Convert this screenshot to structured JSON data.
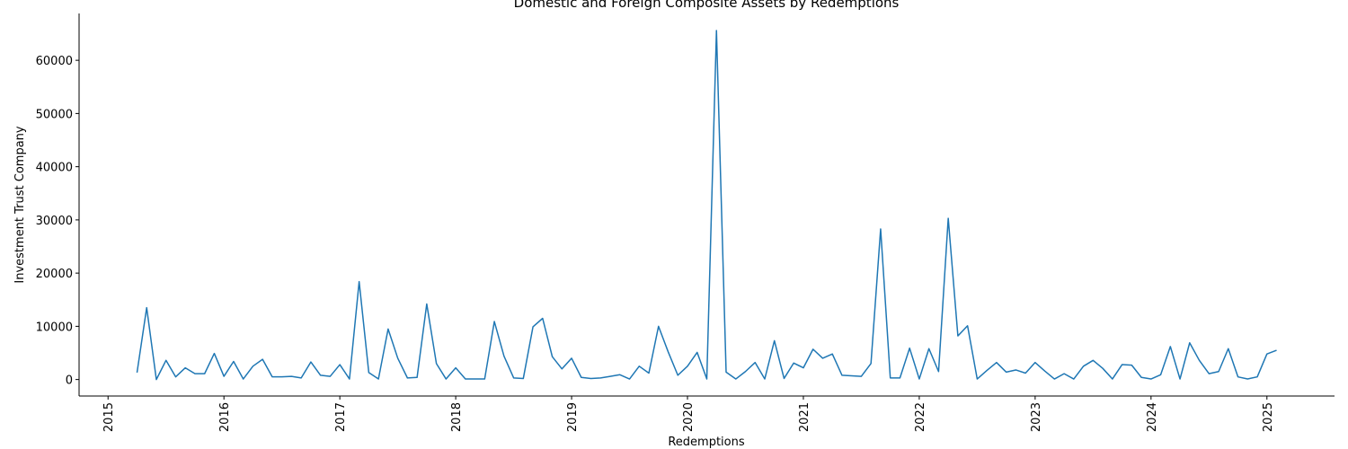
{
  "chart_data": {
    "type": "line",
    "title": "Domestic and Foreign Composite Assets by Redemptions",
    "x_label": "Redemptions",
    "y_label": "Investment Trust Company",
    "x": [
      "2015-04",
      "2015-05",
      "2015-06",
      "2015-07",
      "2015-08",
      "2015-09",
      "2015-10",
      "2015-11",
      "2015-12",
      "2016-01",
      "2016-02",
      "2016-03",
      "2016-04",
      "2016-05",
      "2016-06",
      "2016-07",
      "2016-08",
      "2016-09",
      "2016-10",
      "2016-11",
      "2016-12",
      "2017-01",
      "2017-02",
      "2017-03",
      "2017-04",
      "2017-05",
      "2017-06",
      "2017-07",
      "2017-08",
      "2017-09",
      "2017-10",
      "2017-11",
      "2017-12",
      "2018-01",
      "2018-02",
      "2018-03",
      "2018-04",
      "2018-05",
      "2018-06",
      "2018-07",
      "2018-08",
      "2018-09",
      "2018-10",
      "2018-11",
      "2018-12",
      "2019-01",
      "2019-02",
      "2019-03",
      "2019-04",
      "2019-05",
      "2019-06",
      "2019-07",
      "2019-08",
      "2019-09",
      "2019-10",
      "2019-11",
      "2019-12",
      "2020-01",
      "2020-02",
      "2020-03",
      "2020-04",
      "2020-05",
      "2020-06",
      "2020-07",
      "2020-08",
      "2020-09",
      "2020-10",
      "2020-11",
      "2020-12",
      "2021-01",
      "2021-02",
      "2021-03",
      "2021-04",
      "2021-05",
      "2021-06",
      "2021-07",
      "2021-08",
      "2021-09",
      "2021-10",
      "2021-11",
      "2021-12",
      "2022-01",
      "2022-02",
      "2022-03",
      "2022-04",
      "2022-05",
      "2022-06",
      "2022-07",
      "2022-08",
      "2022-09",
      "2022-10",
      "2022-11",
      "2022-12",
      "2023-01",
      "2023-02",
      "2023-03",
      "2023-04",
      "2023-05",
      "2023-06",
      "2023-07",
      "2023-08",
      "2023-09",
      "2023-10",
      "2023-11",
      "2023-12",
      "2024-01",
      "2024-02",
      "2024-03",
      "2024-04",
      "2024-05",
      "2024-06",
      "2024-07",
      "2024-08",
      "2024-09",
      "2024-10",
      "2024-11",
      "2024-12",
      "2025-01",
      "2025-02"
    ],
    "series": [
      {
        "name": "Investment Trust Company",
        "color": "#1f77b4",
        "values": [
          1300,
          13500,
          0,
          3600,
          500,
          2200,
          1100,
          1100,
          4900,
          600,
          3400,
          100,
          2500,
          3800,
          500,
          500,
          600,
          300,
          3300,
          800,
          600,
          2800,
          100,
          18400,
          1300,
          100,
          9500,
          4000,
          300,
          400,
          14200,
          3000,
          100,
          2200,
          100,
          100,
          100,
          10900,
          4400,
          300,
          200,
          9900,
          11500,
          4300,
          2000,
          4000,
          400,
          200,
          300,
          600,
          900,
          100,
          2500,
          1200,
          10000,
          5200,
          800,
          2500,
          5100,
          100,
          65600,
          1400,
          100,
          1500,
          3200,
          100,
          7300,
          200,
          3100,
          2200,
          5700,
          4000,
          4800,
          800,
          700,
          600,
          3000,
          28300,
          300,
          300,
          5900,
          100,
          5800,
          1500,
          30300,
          8200,
          10100,
          100,
          1700,
          3200,
          1400,
          1800,
          1200,
          3200,
          1600,
          100,
          1100,
          100,
          2500,
          3600,
          2100,
          100,
          2800,
          2700,
          400,
          100,
          900,
          6200,
          100,
          6900,
          3600,
          1100,
          1500,
          5800,
          500,
          100,
          500,
          4800,
          5500
        ]
      }
    ],
    "xlim": [
      "2014-10",
      "2025-08"
    ],
    "xticks": [
      "2015",
      "2016",
      "2017",
      "2018",
      "2019",
      "2020",
      "2021",
      "2022",
      "2023",
      "2024",
      "2025"
    ],
    "ylim": [
      -3100,
      68800
    ],
    "yticks": [
      0,
      10000,
      20000,
      30000,
      40000,
      50000,
      60000
    ],
    "grid": false
  }
}
